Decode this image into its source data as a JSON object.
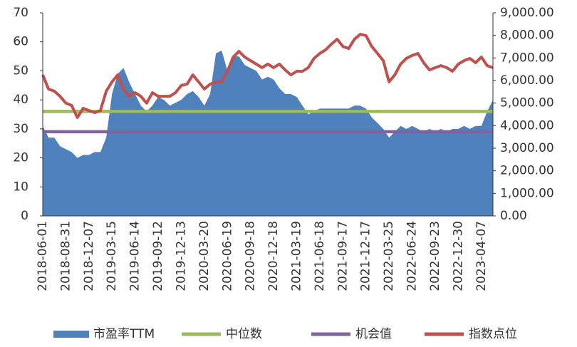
{
  "chart_data": {
    "type": "line",
    "categories": [
      "2018-06-01",
      null,
      null,
      null,
      "2018-08-31",
      null,
      null,
      null,
      "2018-12-07",
      null,
      null,
      null,
      "2019-03-15",
      null,
      null,
      null,
      "2019-06-14",
      null,
      null,
      null,
      "2019-09-12",
      null,
      null,
      null,
      "2019-12-13",
      null,
      null,
      null,
      "2020-03-20",
      null,
      null,
      null,
      "2020-06-19",
      null,
      null,
      null,
      "2020-09-18",
      null,
      null,
      null,
      "2020-12-18",
      null,
      null,
      null,
      "2021-03-19",
      null,
      null,
      null,
      "2021-06-18",
      null,
      null,
      null,
      "2021-09-17",
      null,
      null,
      null,
      "2021-12-17",
      null,
      null,
      null,
      "2022-03-25",
      null,
      null,
      null,
      "2022-06-24",
      null,
      null,
      null,
      "2022-09-23",
      null,
      null,
      null,
      "2022-12-30",
      null,
      null,
      null,
      "2023-04-07",
      null,
      null
    ],
    "series": [
      {
        "name": "市盈率TTM",
        "type": "area",
        "color": "#4f81bd",
        "values": [
          31,
          27,
          27,
          24,
          23,
          22,
          20,
          21,
          21,
          22,
          22,
          27,
          42,
          49,
          51,
          46,
          42,
          38,
          36,
          38,
          41,
          40,
          38,
          39,
          40,
          42,
          43,
          41,
          38,
          42,
          56,
          57,
          50,
          55,
          55,
          52,
          51,
          50,
          47,
          48,
          47,
          44,
          42,
          42,
          41,
          38,
          35,
          36,
          37,
          37,
          37,
          37,
          37,
          37,
          38,
          38,
          37,
          34,
          32,
          30,
          27,
          29,
          31,
          30,
          31,
          30,
          29,
          30,
          29,
          30,
          29,
          30,
          30,
          31,
          30,
          31,
          31,
          36,
          40
        ]
      },
      {
        "name": "中位数",
        "type": "line",
        "color": "#9bbb59",
        "values": [
          36,
          36,
          36,
          36,
          36,
          36,
          36,
          36,
          36,
          36,
          36,
          36,
          36,
          36,
          36,
          36,
          36,
          36,
          36,
          36,
          36,
          36,
          36,
          36,
          36,
          36,
          36,
          36,
          36,
          36,
          36,
          36,
          36,
          36,
          36,
          36,
          36,
          36,
          36,
          36,
          36,
          36,
          36,
          36,
          36,
          36,
          36,
          36,
          36,
          36,
          36,
          36,
          36,
          36,
          36,
          36,
          36,
          36,
          36,
          36,
          36,
          36,
          36,
          36,
          36,
          36,
          36,
          36,
          36,
          36,
          36,
          36,
          36,
          36,
          36,
          36,
          36,
          36,
          36
        ]
      },
      {
        "name": "机会值",
        "type": "line",
        "color": "#8064a2",
        "values": [
          29,
          29,
          29,
          29,
          29,
          29,
          29,
          29,
          29,
          29,
          29,
          29,
          29,
          29,
          29,
          29,
          29,
          29,
          29,
          29,
          29,
          29,
          29,
          29,
          29,
          29,
          29,
          29,
          29,
          29,
          29,
          29,
          29,
          29,
          29,
          29,
          29,
          29,
          29,
          29,
          29,
          29,
          29,
          29,
          29,
          29,
          29,
          29,
          29,
          29,
          29,
          29,
          29,
          29,
          29,
          29,
          29,
          29,
          29,
          29,
          29,
          29,
          29,
          29,
          29,
          29,
          29,
          29,
          29,
          29,
          29,
          29,
          29,
          29,
          29,
          29,
          29,
          29,
          29
        ]
      },
      {
        "name": "指数点位",
        "type": "line",
        "axis": "y2",
        "color": "#c0504d",
        "values": [
          6250,
          5620,
          5530,
          5300,
          5000,
          4900,
          4360,
          4770,
          4670,
          4580,
          4670,
          5530,
          5940,
          6250,
          5620,
          5300,
          5460,
          5300,
          5000,
          5460,
          5300,
          5300,
          5300,
          5460,
          5780,
          5840,
          6250,
          5940,
          5620,
          5840,
          5940,
          5940,
          6410,
          7040,
          7290,
          7040,
          6880,
          6730,
          6570,
          6730,
          6570,
          6730,
          6470,
          6250,
          6410,
          6410,
          6570,
          6980,
          7200,
          7360,
          7610,
          7830,
          7510,
          7420,
          7830,
          8050,
          7990,
          7510,
          7200,
          6880,
          5940,
          6250,
          6730,
          6980,
          7110,
          7200,
          6790,
          6470,
          6570,
          6660,
          6570,
          6410,
          6730,
          6880,
          6980,
          6790,
          7040,
          6660,
          6570
        ]
      }
    ],
    "ylim": [
      0,
      70
    ],
    "yticks": [
      0,
      10,
      20,
      30,
      40,
      50,
      60,
      70
    ],
    "y2lim": [
      0,
      9000
    ],
    "y2ticks": [
      {
        "value": 0,
        "label": "0.00"
      },
      {
        "value": 1000,
        "label": "1,000.00"
      },
      {
        "value": 2000,
        "label": "2,000.00"
      },
      {
        "value": 3000,
        "label": "3,000.00"
      },
      {
        "value": 4000,
        "label": "4,000.00"
      },
      {
        "value": 5000,
        "label": "5,000.00"
      },
      {
        "value": 6000,
        "label": "6,000.00"
      },
      {
        "value": 7000,
        "label": "7,000.00"
      },
      {
        "value": 8000,
        "label": "8,000.00"
      },
      {
        "value": 9000,
        "label": "9,000.00"
      }
    ],
    "legend": "bottom"
  }
}
